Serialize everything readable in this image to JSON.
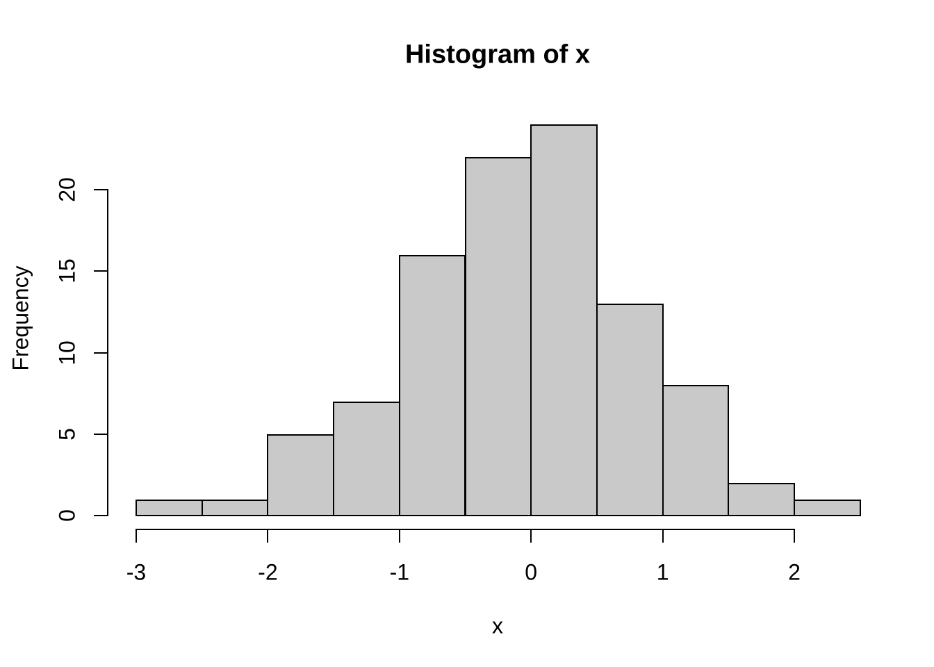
{
  "chart_data": {
    "type": "bar",
    "subtype": "histogram",
    "title": "Histogram of x",
    "xlabel": "x",
    "ylabel": "Frequency",
    "breaks": [
      -3,
      -2.5,
      -2,
      -1.5,
      -1,
      -0.5,
      0,
      0.5,
      1,
      1.5,
      2,
      2.5
    ],
    "counts": [
      1,
      1,
      5,
      7,
      16,
      22,
      24,
      13,
      8,
      2,
      1
    ],
    "xticks": [
      -3,
      -2,
      -1,
      0,
      1,
      2
    ],
    "yticks": [
      0,
      5,
      10,
      15,
      20
    ],
    "xlim": [
      -3,
      2.5
    ],
    "ylim": [
      0,
      24
    ],
    "grid": "off",
    "legend": "none",
    "colors": {
      "bar_fill": "#c9c9c9",
      "bar_border": "#000000",
      "axis": "#000000",
      "text": "#000000",
      "background": "#ffffff"
    }
  }
}
